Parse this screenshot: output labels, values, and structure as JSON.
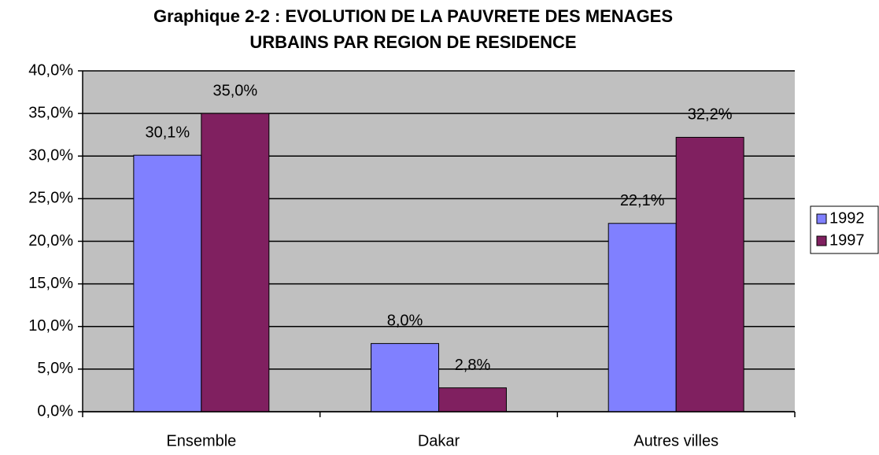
{
  "chart_data": {
    "type": "bar",
    "title": [
      "Graphique 2-2 :  EVOLUTION DE LA PAUVRETE DES MENAGES",
      "URBAINS PAR REGION DE RESIDENCE"
    ],
    "categories": [
      "Ensemble",
      "Dakar",
      "Autres villes"
    ],
    "series": [
      {
        "name": "1992",
        "color": "#8080ff",
        "values": [
          30.1,
          8.0,
          22.1
        ],
        "value_labels": [
          "30,1%",
          "8,0%",
          "22,1%"
        ]
      },
      {
        "name": "1997",
        "color": "#802060",
        "values": [
          35.0,
          2.8,
          32.2
        ],
        "value_labels": [
          "35,0%",
          "2,8%",
          "32,2%"
        ]
      }
    ],
    "ylim": [
      0,
      40
    ],
    "yticks": [
      {
        "value": 0,
        "label": "0,0%"
      },
      {
        "value": 5,
        "label": "5,0%"
      },
      {
        "value": 10,
        "label": "10,0%"
      },
      {
        "value": 15,
        "label": "15,0%"
      },
      {
        "value": 20,
        "label": "20,0%"
      },
      {
        "value": 25,
        "label": "25,0%"
      },
      {
        "value": 30,
        "label": "30,0%"
      },
      {
        "value": 35,
        "label": "35,0%"
      },
      {
        "value": 40,
        "label": "40,0%"
      }
    ],
    "grid": true,
    "legend": "right"
  }
}
